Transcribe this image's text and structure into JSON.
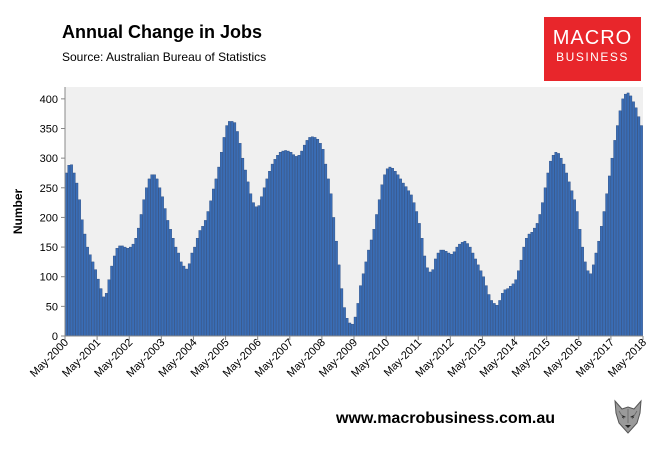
{
  "header": {
    "title": "Annual Change in Jobs",
    "subtitle": "Source: Australian Bureau of Statistics"
  },
  "logo": {
    "word1": "MACRO",
    "word2": "BUSINESS",
    "bg_color": "#e8262b",
    "text_color": "#ffffff"
  },
  "footer": {
    "url": "www.macrobusiness.com.au"
  },
  "colors": {
    "bar_fill": "#3a6db5",
    "bar_edge": "#1f3f75",
    "plot_bg": "#f0f0f0"
  },
  "chart_data": {
    "type": "bar",
    "title": "Annual Change in Jobs",
    "subtitle": "Source: Australian Bureau of Statistics",
    "xlabel": "",
    "ylabel": "Number",
    "ylim": [
      0,
      420
    ],
    "yticks": [
      0,
      50,
      100,
      150,
      200,
      250,
      300,
      350,
      400
    ],
    "grid": false,
    "legend": "none",
    "xtick_labels": [
      "May-2000",
      "May-2001",
      "May-2002",
      "May-2003",
      "May-2004",
      "May-2005",
      "May-2006",
      "May-2007",
      "May-2008",
      "May-2009",
      "May-2010",
      "May-2011",
      "May-2012",
      "May-2013",
      "May-2014",
      "May-2015",
      "May-2016",
      "May-2017",
      "May-2018"
    ],
    "frequency": "monthly",
    "start": "May-2000",
    "values": [
      275,
      288,
      289,
      275,
      258,
      230,
      196,
      172,
      150,
      137,
      125,
      112,
      96,
      80,
      66,
      72,
      95,
      118,
      135,
      148,
      152,
      152,
      150,
      148,
      150,
      155,
      165,
      182,
      205,
      230,
      250,
      265,
      272,
      272,
      265,
      250,
      235,
      215,
      195,
      180,
      165,
      150,
      140,
      125,
      118,
      113,
      122,
      140,
      150,
      165,
      178,
      185,
      195,
      210,
      228,
      248,
      265,
      285,
      310,
      335,
      355,
      362,
      362,
      360,
      345,
      325,
      300,
      280,
      260,
      240,
      225,
      218,
      220,
      235,
      250,
      265,
      278,
      290,
      298,
      305,
      310,
      312,
      313,
      312,
      310,
      306,
      303,
      305,
      312,
      322,
      330,
      335,
      336,
      335,
      332,
      325,
      315,
      290,
      265,
      240,
      200,
      160,
      120,
      80,
      48,
      30,
      22,
      20,
      32,
      55,
      85,
      105,
      125,
      145,
      162,
      180,
      205,
      230,
      255,
      272,
      282,
      285,
      283,
      278,
      272,
      265,
      258,
      252,
      245,
      238,
      225,
      210,
      190,
      165,
      135,
      115,
      108,
      112,
      130,
      140,
      145,
      145,
      143,
      140,
      138,
      142,
      150,
      155,
      158,
      160,
      156,
      150,
      140,
      130,
      120,
      110,
      100,
      85,
      70,
      60,
      55,
      52,
      60,
      72,
      78,
      80,
      84,
      88,
      95,
      110,
      128,
      150,
      165,
      172,
      175,
      182,
      190,
      205,
      225,
      250,
      275,
      295,
      305,
      310,
      308,
      300,
      290,
      275,
      260,
      245,
      230,
      210,
      180,
      150,
      125,
      110,
      105,
      120,
      140,
      160,
      185,
      210,
      240,
      270,
      300,
      330,
      355,
      380,
      400,
      408,
      410,
      405,
      395,
      385,
      370,
      355
    ]
  }
}
